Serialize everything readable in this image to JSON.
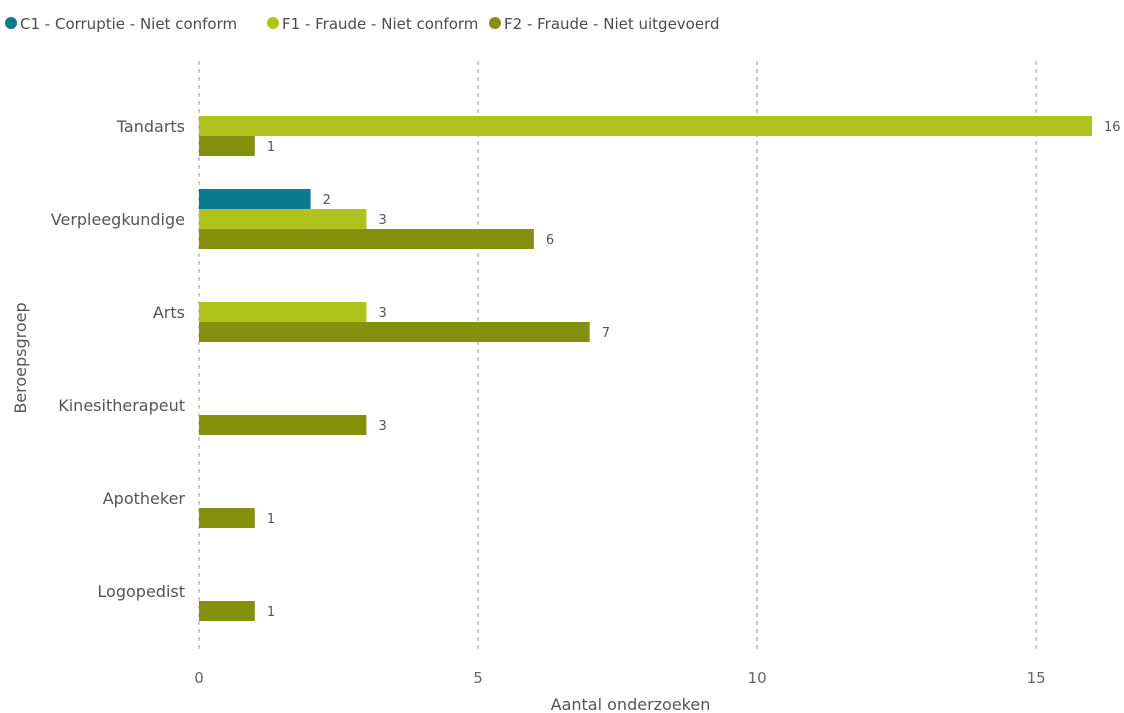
{
  "chart_data": {
    "type": "bar",
    "orientation": "horizontal",
    "title": "",
    "categories": [
      "Tandarts",
      "Verpleegkundige",
      "Arts",
      "Kinesitherapeut",
      "Apotheker",
      "Logopedist"
    ],
    "series": [
      {
        "name": "C1 - Corruptie - Niet conform",
        "color": "#0b7b8f",
        "values": [
          null,
          2,
          null,
          null,
          null,
          null
        ]
      },
      {
        "name": "F1 - Fraude - Niet conform",
        "color": "#aec41c",
        "values": [
          16,
          3,
          3,
          null,
          null,
          null
        ]
      },
      {
        "name": "F2 - Fraude - Niet uitgevoerd",
        "color": "#84900e",
        "values": [
          1,
          6,
          7,
          3,
          1,
          1
        ]
      }
    ],
    "xlabel": "Aantal onderzoeken",
    "ylabel": "Beroepsgroep",
    "xlim": [
      0,
      16
    ],
    "xticks": [
      0,
      5,
      10,
      15
    ],
    "grid": "vertical-dotted",
    "legend": "top-left",
    "data_labels": true
  }
}
